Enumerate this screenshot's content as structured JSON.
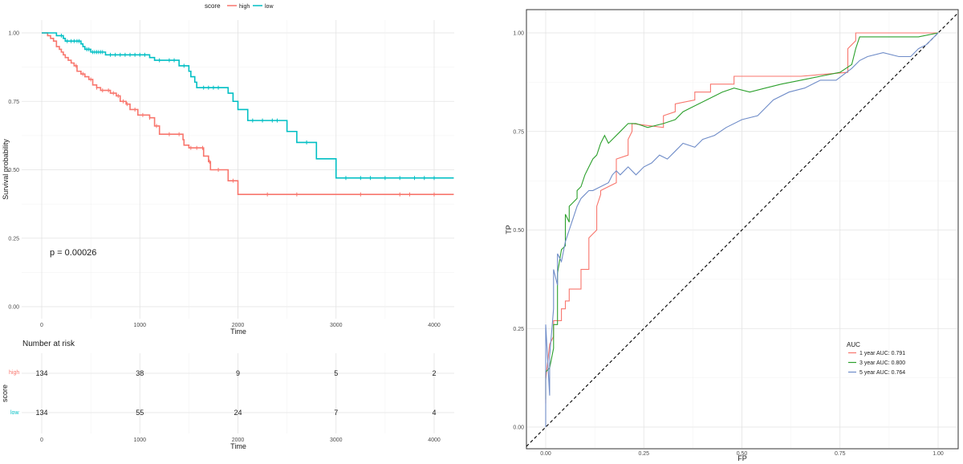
{
  "chart_data": [
    {
      "type": "line",
      "kind": "kaplan-meier",
      "legend": {
        "title": "score",
        "entries": [
          "high",
          "low"
        ],
        "placement": "top"
      },
      "xlabel": "Time",
      "ylabel": "Survival probability",
      "xlim": [
        0,
        4200
      ],
      "ylim": [
        0,
        1
      ],
      "x_ticks": [
        "0",
        "1000",
        "2000",
        "3000",
        "4000"
      ],
      "y_ticks": [
        "0.00",
        "0.25",
        "0.50",
        "0.75",
        "1.00"
      ],
      "annotation": "p = 0.00026",
      "colors": {
        "high": "#F8766D",
        "low": "#00BFC4"
      },
      "series": [
        {
          "name": "high",
          "steps": [
            [
              0,
              1.0
            ],
            [
              60,
              0.99
            ],
            [
              90,
              0.98
            ],
            [
              120,
              0.97
            ],
            [
              150,
              0.95
            ],
            [
              180,
              0.94
            ],
            [
              200,
              0.93
            ],
            [
              220,
              0.92
            ],
            [
              240,
              0.91
            ],
            [
              270,
              0.9
            ],
            [
              300,
              0.89
            ],
            [
              330,
              0.88
            ],
            [
              360,
              0.86
            ],
            [
              400,
              0.85
            ],
            [
              440,
              0.84
            ],
            [
              480,
              0.83
            ],
            [
              520,
              0.81
            ],
            [
              560,
              0.8
            ],
            [
              600,
              0.79
            ],
            [
              700,
              0.78
            ],
            [
              760,
              0.77
            ],
            [
              800,
              0.75
            ],
            [
              860,
              0.74
            ],
            [
              900,
              0.72
            ],
            [
              980,
              0.7
            ],
            [
              1100,
              0.69
            ],
            [
              1150,
              0.66
            ],
            [
              1200,
              0.63
            ],
            [
              1440,
              0.61
            ],
            [
              1450,
              0.59
            ],
            [
              1500,
              0.58
            ],
            [
              1650,
              0.55
            ],
            [
              1700,
              0.53
            ],
            [
              1720,
              0.5
            ],
            [
              1900,
              0.46
            ],
            [
              2000,
              0.41
            ],
            [
              4200,
              0.41
            ]
          ],
          "censor": [
            350,
            420,
            500,
            560,
            620,
            680,
            730,
            780,
            830,
            870,
            950,
            1030,
            1100,
            1170,
            1300,
            1400,
            1520,
            1580,
            1640,
            1710,
            1800,
            1950,
            2300,
            2600,
            3250,
            3650,
            3750,
            4000
          ]
        },
        {
          "name": "low",
          "steps": [
            [
              0,
              1.0
            ],
            [
              150,
              0.99
            ],
            [
              220,
              0.98
            ],
            [
              240,
              0.97
            ],
            [
              400,
              0.96
            ],
            [
              420,
              0.95
            ],
            [
              440,
              0.94
            ],
            [
              500,
              0.93
            ],
            [
              650,
              0.92
            ],
            [
              1100,
              0.91
            ],
            [
              1150,
              0.9
            ],
            [
              1400,
              0.88
            ],
            [
              1500,
              0.86
            ],
            [
              1520,
              0.84
            ],
            [
              1560,
              0.82
            ],
            [
              1580,
              0.8
            ],
            [
              1900,
              0.78
            ],
            [
              1950,
              0.75
            ],
            [
              2000,
              0.72
            ],
            [
              2100,
              0.68
            ],
            [
              2500,
              0.64
            ],
            [
              2600,
              0.6
            ],
            [
              2800,
              0.54
            ],
            [
              3000,
              0.47
            ],
            [
              4200,
              0.47
            ]
          ],
          "censor": [
            200,
            260,
            300,
            330,
            360,
            380,
            460,
            480,
            520,
            540,
            560,
            580,
            600,
            620,
            700,
            750,
            800,
            850,
            900,
            950,
            1000,
            1050,
            1200,
            1300,
            1350,
            1450,
            1650,
            1700,
            1750,
            1800,
            2150,
            2250,
            2350,
            2400,
            2700,
            3100,
            3250,
            3350,
            3500,
            3650,
            3800,
            3900,
            4000
          ]
        }
      ]
    },
    {
      "type": "table",
      "title": "Number at risk",
      "ylabel": "score",
      "xlabel": "Time",
      "x_ticks": [
        "0",
        "1000",
        "2000",
        "3000",
        "4000"
      ],
      "rows": [
        {
          "name": "high",
          "values": [
            "134",
            "38",
            "9",
            "5",
            "2"
          ]
        },
        {
          "name": "low",
          "values": [
            "134",
            "55",
            "24",
            "7",
            "4"
          ]
        }
      ]
    },
    {
      "type": "line",
      "kind": "roc",
      "xlabel": "FP",
      "ylabel": "TP",
      "xlim": [
        0,
        1
      ],
      "ylim": [
        0,
        1
      ],
      "x_ticks": [
        "0.00",
        "0.25",
        "0.50",
        "0.75",
        "1.00"
      ],
      "y_ticks": [
        "0.00",
        "0.25",
        "0.50",
        "0.75",
        "1.00"
      ],
      "legend": {
        "title": "AUC",
        "placement": "bottom-right"
      },
      "series": [
        {
          "name": "1 year AUC: 0.791",
          "color": "#F8766D",
          "points": [
            [
              0,
              0.06
            ],
            [
              0,
              0.12
            ],
            [
              0.01,
              0.21
            ],
            [
              0.02,
              0.23
            ],
            [
              0.02,
              0.27
            ],
            [
              0.04,
              0.27
            ],
            [
              0.04,
              0.3
            ],
            [
              0.05,
              0.3
            ],
            [
              0.05,
              0.32
            ],
            [
              0.06,
              0.32
            ],
            [
              0.06,
              0.35
            ],
            [
              0.09,
              0.35
            ],
            [
              0.09,
              0.4
            ],
            [
              0.11,
              0.4
            ],
            [
              0.11,
              0.48
            ],
            [
              0.13,
              0.5
            ],
            [
              0.13,
              0.56
            ],
            [
              0.14,
              0.59
            ],
            [
              0.14,
              0.6
            ],
            [
              0.16,
              0.61
            ],
            [
              0.18,
              0.62
            ],
            [
              0.18,
              0.68
            ],
            [
              0.21,
              0.69
            ],
            [
              0.21,
              0.73
            ],
            [
              0.22,
              0.75
            ],
            [
              0.22,
              0.77
            ],
            [
              0.3,
              0.76
            ],
            [
              0.3,
              0.79
            ],
            [
              0.33,
              0.8
            ],
            [
              0.33,
              0.82
            ],
            [
              0.38,
              0.83
            ],
            [
              0.38,
              0.85
            ],
            [
              0.42,
              0.85
            ],
            [
              0.42,
              0.87
            ],
            [
              0.48,
              0.87
            ],
            [
              0.48,
              0.89
            ],
            [
              0.65,
              0.89
            ],
            [
              0.77,
              0.9
            ],
            [
              0.77,
              0.96
            ],
            [
              0.78,
              0.97
            ],
            [
              0.79,
              0.98
            ],
            [
              0.79,
              1.0
            ],
            [
              1.0,
              1.0
            ]
          ]
        },
        {
          "name": "3 year AUC: 0.800",
          "color": "#2CA02C",
          "points": [
            [
              0,
              0.07
            ],
            [
              0,
              0.14
            ],
            [
              0.01,
              0.15
            ],
            [
              0.02,
              0.2
            ],
            [
              0.02,
              0.26
            ],
            [
              0.03,
              0.26
            ],
            [
              0.03,
              0.39
            ],
            [
              0.04,
              0.45
            ],
            [
              0.05,
              0.46
            ],
            [
              0.05,
              0.54
            ],
            [
              0.06,
              0.52
            ],
            [
              0.06,
              0.56
            ],
            [
              0.07,
              0.57
            ],
            [
              0.08,
              0.58
            ],
            [
              0.08,
              0.6
            ],
            [
              0.09,
              0.61
            ],
            [
              0.1,
              0.64
            ],
            [
              0.11,
              0.66
            ],
            [
              0.12,
              0.68
            ],
            [
              0.13,
              0.69
            ],
            [
              0.14,
              0.72
            ],
            [
              0.15,
              0.74
            ],
            [
              0.16,
              0.72
            ],
            [
              0.17,
              0.73
            ],
            [
              0.19,
              0.75
            ],
            [
              0.21,
              0.77
            ],
            [
              0.23,
              0.77
            ],
            [
              0.26,
              0.76
            ],
            [
              0.3,
              0.77
            ],
            [
              0.33,
              0.78
            ],
            [
              0.35,
              0.8
            ],
            [
              0.37,
              0.81
            ],
            [
              0.39,
              0.82
            ],
            [
              0.41,
              0.83
            ],
            [
              0.43,
              0.84
            ],
            [
              0.45,
              0.85
            ],
            [
              0.48,
              0.86
            ],
            [
              0.52,
              0.85
            ],
            [
              0.56,
              0.86
            ],
            [
              0.6,
              0.87
            ],
            [
              0.65,
              0.88
            ],
            [
              0.7,
              0.89
            ],
            [
              0.75,
              0.9
            ],
            [
              0.78,
              0.92
            ],
            [
              0.79,
              0.96
            ],
            [
              0.8,
              0.99
            ],
            [
              0.85,
              0.99
            ],
            [
              0.9,
              0.99
            ],
            [
              0.95,
              0.99
            ],
            [
              1.0,
              1.0
            ]
          ]
        },
        {
          "name": "5 year AUC: 0.764",
          "color": "#6F8CC8",
          "points": [
            [
              0,
              0.0
            ],
            [
              0,
              0.26
            ],
            [
              0.01,
              0.08
            ],
            [
              0.01,
              0.18
            ],
            [
              0.02,
              0.3
            ],
            [
              0.02,
              0.4
            ],
            [
              0.03,
              0.36
            ],
            [
              0.03,
              0.44
            ],
            [
              0.04,
              0.42
            ],
            [
              0.05,
              0.47
            ],
            [
              0.06,
              0.5
            ],
            [
              0.07,
              0.53
            ],
            [
              0.08,
              0.56
            ],
            [
              0.09,
              0.58
            ],
            [
              0.1,
              0.59
            ],
            [
              0.11,
              0.6
            ],
            [
              0.12,
              0.6
            ],
            [
              0.14,
              0.61
            ],
            [
              0.16,
              0.62
            ],
            [
              0.17,
              0.64
            ],
            [
              0.18,
              0.65
            ],
            [
              0.19,
              0.64
            ],
            [
              0.21,
              0.66
            ],
            [
              0.23,
              0.64
            ],
            [
              0.25,
              0.66
            ],
            [
              0.27,
              0.67
            ],
            [
              0.29,
              0.69
            ],
            [
              0.31,
              0.68
            ],
            [
              0.33,
              0.7
            ],
            [
              0.35,
              0.72
            ],
            [
              0.38,
              0.71
            ],
            [
              0.4,
              0.73
            ],
            [
              0.43,
              0.74
            ],
            [
              0.46,
              0.76
            ],
            [
              0.5,
              0.78
            ],
            [
              0.54,
              0.79
            ],
            [
              0.58,
              0.83
            ],
            [
              0.62,
              0.85
            ],
            [
              0.66,
              0.86
            ],
            [
              0.7,
              0.88
            ],
            [
              0.74,
              0.88
            ],
            [
              0.78,
              0.91
            ],
            [
              0.8,
              0.93
            ],
            [
              0.82,
              0.94
            ],
            [
              0.86,
              0.95
            ],
            [
              0.9,
              0.94
            ],
            [
              0.93,
              0.94
            ],
            [
              0.95,
              0.96
            ],
            [
              0.97,
              0.97
            ],
            [
              1.0,
              1.0
            ]
          ]
        }
      ]
    }
  ]
}
